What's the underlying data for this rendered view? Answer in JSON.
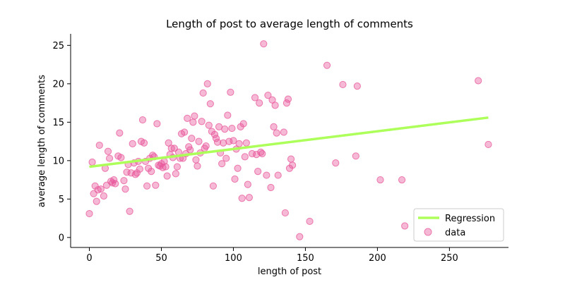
{
  "chart_data": {
    "type": "scatter",
    "title": "Length of post to average length of comments",
    "xlabel": "length of post",
    "ylabel": "average length of comments",
    "xlim": [
      -13,
      291
    ],
    "ylim": [
      -1.3,
      26.5
    ],
    "xticks": [
      0,
      50,
      100,
      150,
      200,
      250
    ],
    "yticks": [
      0,
      5,
      10,
      15,
      20,
      25
    ],
    "grid": false,
    "legend": {
      "position": "lower-right",
      "entries": [
        "Regression",
        "data"
      ]
    },
    "colors": {
      "regression": "#adff5a",
      "points": "#e8559a"
    },
    "series": [
      {
        "name": "Regression",
        "kind": "line",
        "x": [
          0,
          277
        ],
        "y": [
          9.2,
          15.6
        ]
      },
      {
        "name": "data",
        "kind": "scatter",
        "points": [
          [
            0,
            3.1
          ],
          [
            2,
            9.8
          ],
          [
            3,
            5.7
          ],
          [
            4,
            6.7
          ],
          [
            5,
            4.7
          ],
          [
            6,
            6.2
          ],
          [
            7,
            12.0
          ],
          [
            8,
            6.3
          ],
          [
            10,
            5.4
          ],
          [
            11,
            9.0
          ],
          [
            12,
            6.8
          ],
          [
            13,
            11.2
          ],
          [
            14,
            10.3
          ],
          [
            15,
            7.3
          ],
          [
            16,
            7.1
          ],
          [
            17,
            7.5
          ],
          [
            18,
            7.0
          ],
          [
            20,
            10.6
          ],
          [
            21,
            13.6
          ],
          [
            22,
            10.4
          ],
          [
            24,
            7.4
          ],
          [
            25,
            6.3
          ],
          [
            26,
            8.5
          ],
          [
            27,
            9.5
          ],
          [
            28,
            3.4
          ],
          [
            29,
            8.4
          ],
          [
            30,
            12.2
          ],
          [
            31,
            9.7
          ],
          [
            32,
            8.2
          ],
          [
            33,
            8.4
          ],
          [
            34,
            9.9
          ],
          [
            35,
            8.9
          ],
          [
            36,
            12.5
          ],
          [
            37,
            15.3
          ],
          [
            38,
            12.3
          ],
          [
            39,
            9.9
          ],
          [
            40,
            6.7
          ],
          [
            41,
            9.0
          ],
          [
            42,
            10.3
          ],
          [
            43,
            8.6
          ],
          [
            44,
            10.7
          ],
          [
            45,
            10.5
          ],
          [
            46,
            6.8
          ],
          [
            47,
            14.8
          ],
          [
            48,
            9.4
          ],
          [
            49,
            9.3
          ],
          [
            50,
            9.6
          ],
          [
            51,
            9.1
          ],
          [
            52,
            9.9
          ],
          [
            53,
            9.2
          ],
          [
            54,
            8.0
          ],
          [
            55,
            12.3
          ],
          [
            56,
            10.8
          ],
          [
            57,
            11.6
          ],
          [
            58,
            10.4
          ],
          [
            59,
            11.6
          ],
          [
            60,
            8.3
          ],
          [
            61,
            9.2
          ],
          [
            62,
            11.1
          ],
          [
            63,
            10.3
          ],
          [
            64,
            13.5
          ],
          [
            65,
            10.3
          ],
          [
            66,
            13.7
          ],
          [
            67,
            10.9
          ],
          [
            68,
            15.5
          ],
          [
            69,
            11.8
          ],
          [
            70,
            11.4
          ],
          [
            71,
            12.9
          ],
          [
            72,
            15.0
          ],
          [
            73,
            15.8
          ],
          [
            74,
            10.1
          ],
          [
            75,
            9.3
          ],
          [
            76,
            12.5
          ],
          [
            77,
            11.0
          ],
          [
            78,
            15.1
          ],
          [
            79,
            18.8
          ],
          [
            80,
            11.6
          ],
          [
            81,
            11.9
          ],
          [
            82,
            20.0
          ],
          [
            83,
            14.6
          ],
          [
            84,
            17.4
          ],
          [
            85,
            13.8
          ],
          [
            86,
            6.7
          ],
          [
            87,
            13.4
          ],
          [
            88,
            12.9
          ],
          [
            89,
            12.4
          ],
          [
            90,
            14.4
          ],
          [
            91,
            11.0
          ],
          [
            92,
            9.6
          ],
          [
            93,
            12.3
          ],
          [
            94,
            14.1
          ],
          [
            95,
            10.3
          ],
          [
            96,
            15.9
          ],
          [
            97,
            12.5
          ],
          [
            98,
            18.9
          ],
          [
            99,
            14.2
          ],
          [
            100,
            12.6
          ],
          [
            101,
            7.6
          ],
          [
            102,
            11.5
          ],
          [
            103,
            9.0
          ],
          [
            104,
            12.2
          ],
          [
            105,
            14.4
          ],
          [
            106,
            5.1
          ],
          [
            107,
            14.8
          ],
          [
            108,
            10.5
          ],
          [
            109,
            12.3
          ],
          [
            110,
            6.9
          ],
          [
            111,
            5.2
          ],
          [
            113,
            10.9
          ],
          [
            115,
            18.2
          ],
          [
            116,
            10.8
          ],
          [
            117,
            8.6
          ],
          [
            118,
            17.5
          ],
          [
            119,
            11.1
          ],
          [
            120,
            10.9
          ],
          [
            121,
            25.2
          ],
          [
            123,
            8.1
          ],
          [
            124,
            18.5
          ],
          [
            126,
            6.5
          ],
          [
            127,
            17.9
          ],
          [
            128,
            14.4
          ],
          [
            129,
            17.2
          ],
          [
            130,
            13.6
          ],
          [
            131,
            8.1
          ],
          [
            135,
            13.7
          ],
          [
            136,
            3.2
          ],
          [
            137,
            17.5
          ],
          [
            138,
            18.0
          ],
          [
            139,
            9.0
          ],
          [
            140,
            10.2
          ],
          [
            141,
            9.4
          ],
          [
            146,
            0.1
          ],
          [
            153,
            2.1
          ],
          [
            165,
            22.4
          ],
          [
            171,
            9.7
          ],
          [
            176,
            19.9
          ],
          [
            185,
            10.6
          ],
          [
            186,
            19.7
          ],
          [
            202,
            7.5
          ],
          [
            217,
            7.5
          ],
          [
            219,
            1.5
          ],
          [
            270,
            20.4
          ],
          [
            277,
            12.1
          ]
        ]
      }
    ]
  }
}
